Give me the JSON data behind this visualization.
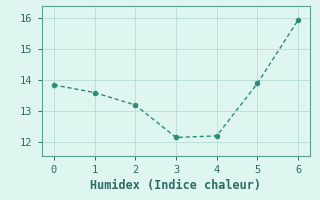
{
  "x": [
    0,
    1,
    2,
    3,
    4,
    5,
    6
  ],
  "y": [
    13.85,
    13.6,
    13.2,
    12.15,
    12.2,
    13.9,
    15.95
  ],
  "line_color": "#2d8b7a",
  "marker_color": "#2d8b7a",
  "xlabel": "Humidex (Indice chaleur)",
  "xlim": [
    -0.3,
    6.3
  ],
  "ylim": [
    11.55,
    16.4
  ],
  "yticks": [
    12,
    13,
    14,
    15,
    16
  ],
  "xticks": [
    0,
    1,
    2,
    3,
    4,
    5,
    6
  ],
  "background_color": "#dff5f0",
  "grid_color": "#b8ddd8",
  "spine_color": "#5a9e96",
  "font_color": "#2d6b65",
  "xlabel_fontsize": 8.5,
  "tick_fontsize": 7.5,
  "linewidth": 1.0,
  "markersize": 3.5
}
